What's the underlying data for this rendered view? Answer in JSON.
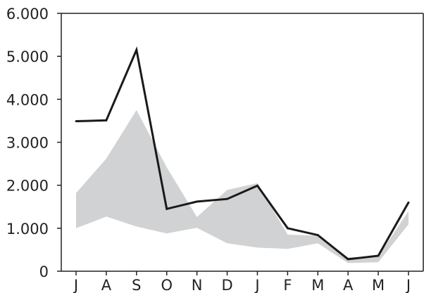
{
  "chart_data": {
    "type": "area",
    "categories": [
      "J",
      "A",
      "S",
      "O",
      "N",
      "D",
      "J",
      "F",
      "M",
      "A",
      "M",
      "J"
    ],
    "ylim": [
      0,
      6000
    ],
    "yticks": [
      {
        "value": 0,
        "label": "0"
      },
      {
        "value": 1000,
        "label": "1.000"
      },
      {
        "value": 2000,
        "label": "2.000"
      },
      {
        "value": 3000,
        "label": "3.000"
      },
      {
        "value": 4000,
        "label": "4.000"
      },
      {
        "value": 5000,
        "label": "5.000"
      },
      {
        "value": 6000,
        "label": "6.000"
      }
    ],
    "grid": false,
    "legend": "none",
    "band": {
      "upper": [
        1820,
        2620,
        3750,
        2420,
        1260,
        1890,
        2050,
        850,
        830,
        320,
        350,
        1400
      ],
      "lower": [
        1000,
        1270,
        1040,
        880,
        1010,
        650,
        550,
        520,
        650,
        190,
        210,
        1090
      ],
      "color": "#d1d2d4"
    },
    "series": [
      {
        "values": [
          3490,
          3510,
          5150,
          1450,
          1620,
          1680,
          1990,
          1000,
          840,
          280,
          360,
          1600
        ],
        "color": "#1a1a1a"
      }
    ],
    "axis_color": "#222222"
  }
}
